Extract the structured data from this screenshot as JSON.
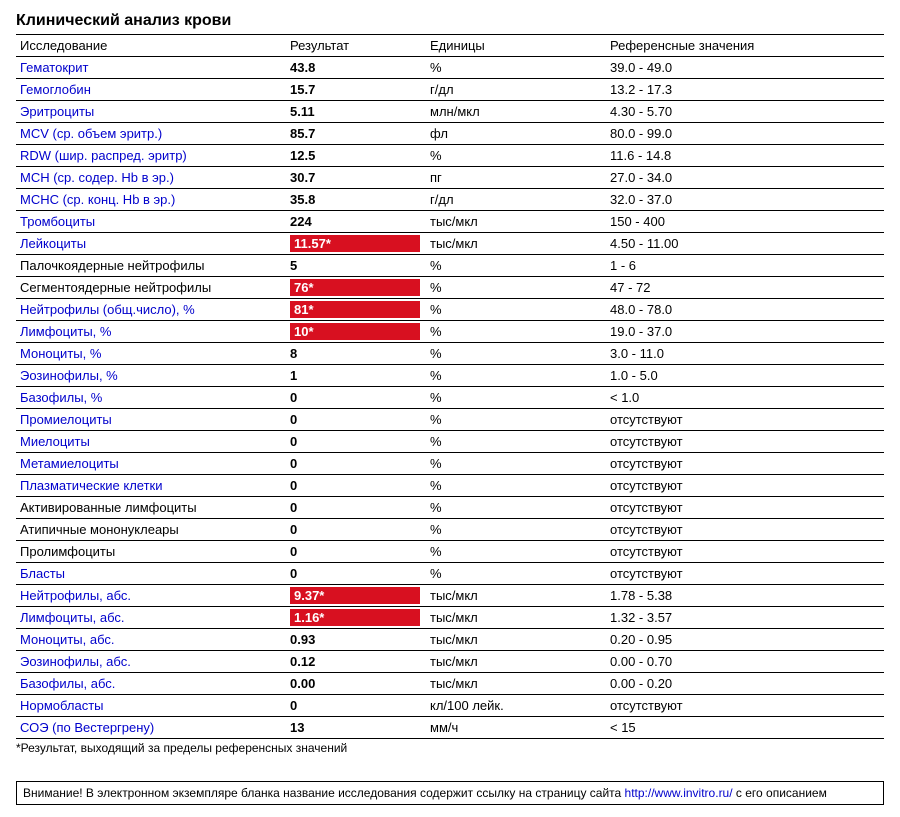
{
  "title": "Клинический анализ крови",
  "headers": {
    "test": "Исследование",
    "result": "Результат",
    "unit": "Единицы",
    "ref": "Референсные значения"
  },
  "colors": {
    "link": "#0000cc",
    "flag_bg": "#d81020",
    "flag_text": "#ffffff",
    "border": "#000000"
  },
  "rows": [
    {
      "name": "Гематокрит",
      "link": true,
      "result": "43.8",
      "flag": false,
      "unit": "%",
      "ref": "39.0 - 49.0"
    },
    {
      "name": "Гемоглобин",
      "link": true,
      "result": "15.7",
      "flag": false,
      "unit": "г/дл",
      "ref": "13.2 - 17.3"
    },
    {
      "name": "Эритроциты",
      "link": true,
      "result": "5.11",
      "flag": false,
      "unit": "млн/мкл",
      "ref": "4.30 - 5.70"
    },
    {
      "name": "MCV (ср. объем эритр.)",
      "link": true,
      "result": "85.7",
      "flag": false,
      "unit": "фл",
      "ref": "80.0 - 99.0"
    },
    {
      "name": "RDW (шир. распред. эритр)",
      "link": true,
      "result": "12.5",
      "flag": false,
      "unit": "%",
      "ref": "11.6 - 14.8"
    },
    {
      "name": "MCH (ср. содер. Hb в эр.)",
      "link": true,
      "result": "30.7",
      "flag": false,
      "unit": "пг",
      "ref": "27.0 - 34.0"
    },
    {
      "name": "MCHC (ср. конц. Hb в эр.)",
      "link": true,
      "result": "35.8",
      "flag": false,
      "unit": "г/дл",
      "ref": "32.0 - 37.0"
    },
    {
      "name": "Тромбоциты",
      "link": true,
      "result": "224",
      "flag": false,
      "unit": "тыс/мкл",
      "ref": "150 - 400"
    },
    {
      "name": "Лейкоциты",
      "link": true,
      "result": "11.57*",
      "flag": true,
      "unit": "тыс/мкл",
      "ref": "4.50 - 11.00"
    },
    {
      "name": "Палочкоядерные нейтрофилы",
      "link": false,
      "result": "5",
      "flag": false,
      "unit": "%",
      "ref": "1 - 6"
    },
    {
      "name": "Сегментоядерные нейтрофилы",
      "link": false,
      "result": "76*",
      "flag": true,
      "unit": "%",
      "ref": "47 - 72"
    },
    {
      "name": "Нейтрофилы (общ.число), %",
      "link": true,
      "result": "81*",
      "flag": true,
      "unit": "%",
      "ref": "48.0 - 78.0"
    },
    {
      "name": "Лимфоциты, %",
      "link": true,
      "result": "10*",
      "flag": true,
      "unit": "%",
      "ref": "19.0 - 37.0"
    },
    {
      "name": "Моноциты, %",
      "link": true,
      "result": "8",
      "flag": false,
      "unit": "%",
      "ref": "3.0 - 11.0"
    },
    {
      "name": "Эозинофилы, %",
      "link": true,
      "result": "1",
      "flag": false,
      "unit": "%",
      "ref": "1.0 - 5.0"
    },
    {
      "name": "Базофилы, %",
      "link": true,
      "result": "0",
      "flag": false,
      "unit": "%",
      "ref": "< 1.0"
    },
    {
      "name": "Промиелоциты",
      "link": true,
      "result": "0",
      "flag": false,
      "unit": "%",
      "ref": "отсутствуют"
    },
    {
      "name": "Миелоциты",
      "link": true,
      "result": "0",
      "flag": false,
      "unit": "%",
      "ref": "отсутствуют"
    },
    {
      "name": "Метамиелоциты",
      "link": true,
      "result": "0",
      "flag": false,
      "unit": "%",
      "ref": "отсутствуют"
    },
    {
      "name": "Плазматические клетки",
      "link": true,
      "result": "0",
      "flag": false,
      "unit": "%",
      "ref": "отсутствуют"
    },
    {
      "name": "Активированные лимфоциты",
      "link": false,
      "result": "0",
      "flag": false,
      "unit": "%",
      "ref": "отсутствуют"
    },
    {
      "name": "Атипичные мононуклеары",
      "link": false,
      "result": "0",
      "flag": false,
      "unit": "%",
      "ref": "отсутствуют"
    },
    {
      "name": "Пролимфоциты",
      "link": false,
      "result": "0",
      "flag": false,
      "unit": "%",
      "ref": "отсутствуют"
    },
    {
      "name": "Бласты",
      "link": true,
      "result": "0",
      "flag": false,
      "unit": "%",
      "ref": "отсутствуют"
    },
    {
      "name": "Нейтрофилы, абс.",
      "link": true,
      "result": "9.37*",
      "flag": true,
      "unit": "тыс/мкл",
      "ref": "1.78 - 5.38"
    },
    {
      "name": "Лимфоциты, абс.",
      "link": true,
      "result": "1.16*",
      "flag": true,
      "unit": "тыс/мкл",
      "ref": "1.32 - 3.57"
    },
    {
      "name": "Моноциты, абс.",
      "link": true,
      "result": "0.93",
      "flag": false,
      "unit": "тыс/мкл",
      "ref": "0.20 - 0.95"
    },
    {
      "name": "Эозинофилы, абс.",
      "link": true,
      "result": "0.12",
      "flag": false,
      "unit": "тыс/мкл",
      "ref": "0.00 - 0.70"
    },
    {
      "name": "Базофилы, абс.",
      "link": true,
      "result": "0.00",
      "flag": false,
      "unit": "тыс/мкл",
      "ref": "0.00 - 0.20"
    },
    {
      "name": "Нормобласты",
      "link": true,
      "result": "0",
      "flag": false,
      "unit": "кл/100 лейк.",
      "ref": "отсутствуют"
    },
    {
      "name": "СОЭ (по Вестергрену)",
      "link": true,
      "result": "13",
      "flag": false,
      "unit": "мм/ч",
      "ref": "< 15"
    }
  ],
  "footnote": "*Результат, выходящий за пределы референсных значений",
  "attention": {
    "prefix": "Внимание! В электронном экземпляре бланка название исследования содержит ссылку на страницу сайта ",
    "link_text": "http://www.invitro.ru/",
    "suffix": " с его описанием"
  }
}
